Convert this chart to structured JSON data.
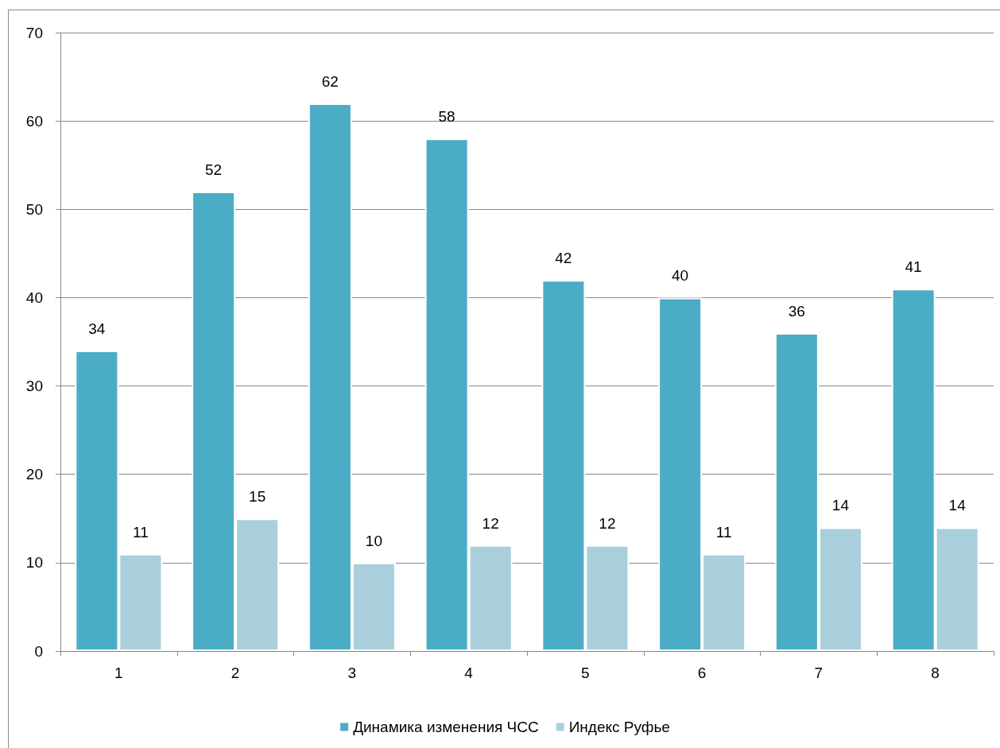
{
  "chart_data": {
    "type": "bar",
    "categories": [
      "1",
      "2",
      "3",
      "4",
      "5",
      "6",
      "7",
      "8"
    ],
    "series": [
      {
        "name": "Динамика изменения ЧСС",
        "color": "#4bacc6",
        "values": [
          34,
          52,
          62,
          58,
          42,
          40,
          36,
          41
        ]
      },
      {
        "name": "Индекс Руфье",
        "color": "#a9cfdc",
        "values": [
          11,
          15,
          10,
          12,
          12,
          11,
          14,
          14
        ]
      }
    ],
    "ylim": [
      0,
      70
    ],
    "yticks": [
      0,
      10,
      20,
      30,
      40,
      50,
      60,
      70
    ],
    "grid": "y",
    "legend": "bottom",
    "data_labels": true
  }
}
